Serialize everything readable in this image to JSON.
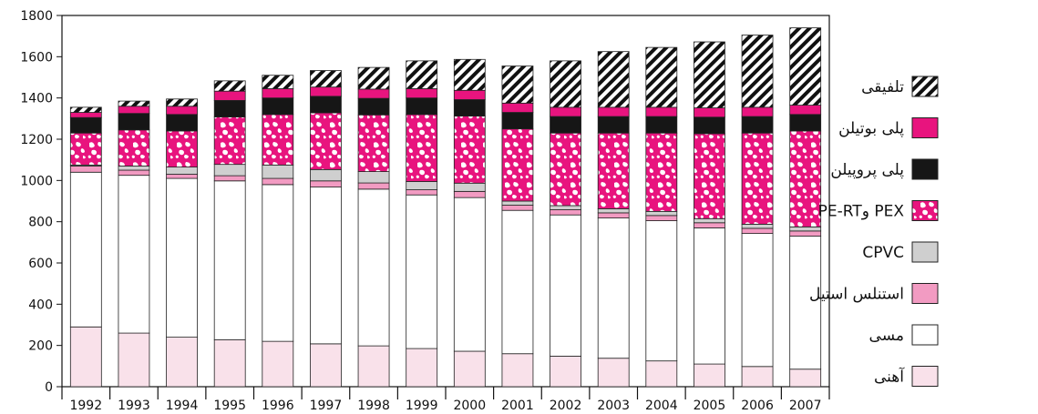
{
  "chart_data": {
    "type": "bar",
    "stacked": true,
    "title": "",
    "xlabel": "",
    "ylabel": "",
    "ylim": [
      0,
      1800
    ],
    "yticks": [
      0,
      200,
      400,
      600,
      800,
      1000,
      1200,
      1400,
      1600,
      1800
    ],
    "grid": false,
    "legend_position": "right",
    "categories": [
      "1992",
      "1993",
      "1994",
      "1995",
      "1996",
      "1997",
      "1998",
      "1999",
      "2000",
      "2001",
      "2002",
      "2003",
      "2004",
      "2005",
      "2006",
      "2007"
    ],
    "series": [
      {
        "name": "آهنی",
        "color": "#f9e1ea",
        "pattern": "solid",
        "values": [
          290,
          260,
          240,
          228,
          220,
          208,
          198,
          185,
          172,
          160,
          148,
          138,
          125,
          110,
          98,
          85
        ]
      },
      {
        "name": "مسی",
        "color": "#ffffff",
        "pattern": "solid",
        "values": [
          750,
          765,
          770,
          770,
          760,
          760,
          760,
          745,
          745,
          695,
          685,
          680,
          680,
          660,
          645,
          645
        ]
      },
      {
        "name": "استنلس استیل",
        "color": "#f29bc2",
        "pattern": "solid",
        "values": [
          30,
          25,
          20,
          25,
          30,
          30,
          30,
          25,
          30,
          25,
          25,
          25,
          25,
          25,
          25,
          25
        ]
      },
      {
        "name": "CPVC",
        "color": "#cfcfcf",
        "pattern": "solid",
        "values": [
          5,
          20,
          35,
          55,
          65,
          55,
          55,
          40,
          40,
          20,
          20,
          20,
          20,
          20,
          20,
          20
        ]
      },
      {
        "name": "PE-RTو PEX",
        "color": "#e8147e",
        "pattern": "mottled",
        "values": [
          155,
          175,
          175,
          230,
          245,
          275,
          275,
          325,
          325,
          350,
          352,
          367,
          380,
          412,
          442,
          465
        ]
      },
      {
        "name": "پلی پروپیلن",
        "color": "#161616",
        "pattern": "solid",
        "values": [
          75,
          80,
          80,
          80,
          80,
          80,
          80,
          80,
          80,
          80,
          80,
          80,
          80,
          80,
          80,
          80
        ]
      },
      {
        "name": "پلی بوتیلن",
        "color": "#e8147e",
        "pattern": "solid",
        "values": [
          25,
          35,
          40,
          45,
          45,
          45,
          45,
          45,
          45,
          45,
          45,
          45,
          45,
          45,
          45,
          45
        ]
      },
      {
        "name": "تلفیقی",
        "color": "#111111",
        "pattern": "hatch",
        "values": [
          25,
          25,
          35,
          50,
          65,
          80,
          105,
          135,
          150,
          180,
          225,
          270,
          290,
          320,
          350,
          375
        ]
      }
    ]
  }
}
